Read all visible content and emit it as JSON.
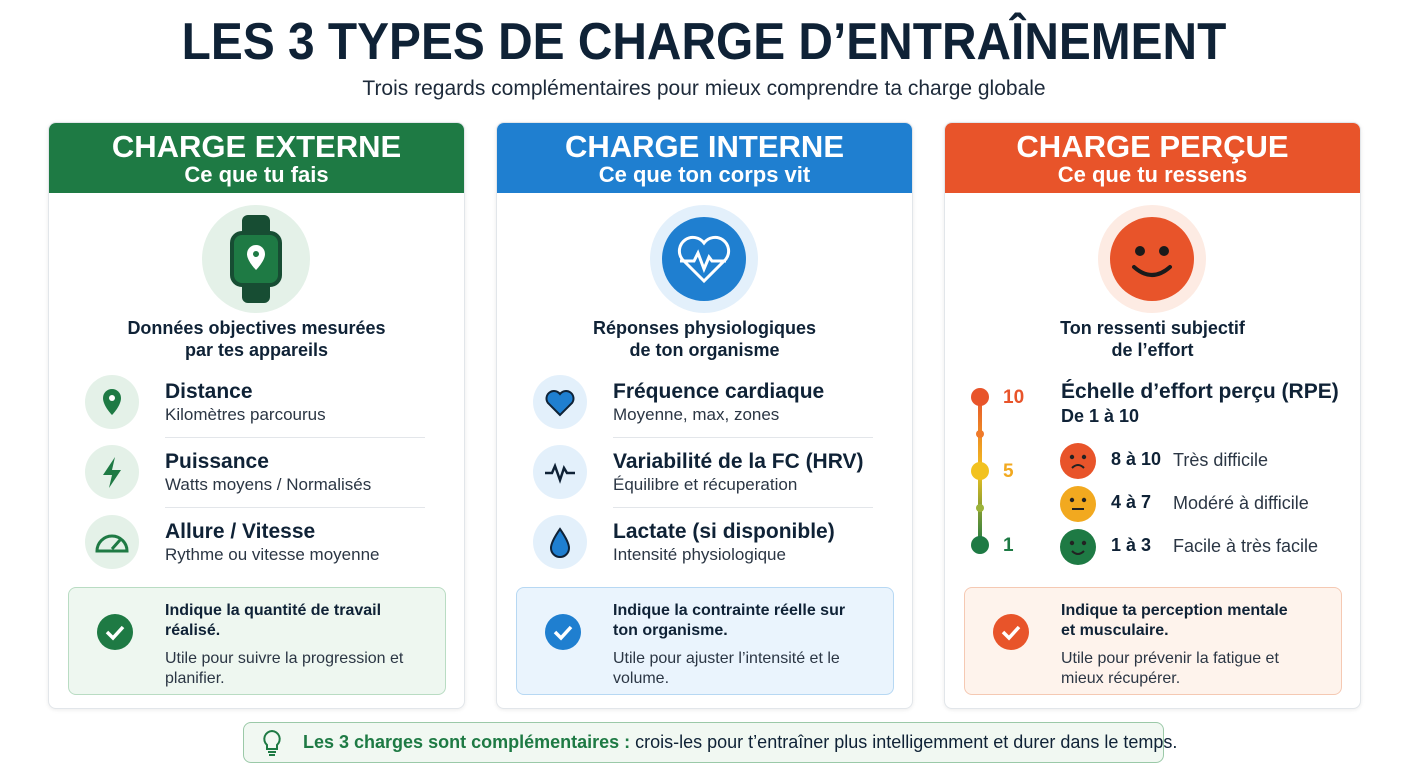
{
  "header": {
    "title": "LES 3 TYPES DE CHARGE D’ENTRAÎNEMENT",
    "subtitle": "Trois regards complémentaires pour mieux comprendre ta charge globale"
  },
  "cards": [
    {
      "title": "CHARGE EXTERNE",
      "subtitle": "Ce que tu fais",
      "intro": [
        "Données objectives mesurées",
        "par tes appareils"
      ],
      "items": [
        {
          "title": "Distance",
          "text": "Kilomètres parcourus"
        },
        {
          "title": "Puissance",
          "text": "Watts moyens / Normalisés"
        },
        {
          "title": "Allure / Vitesse",
          "text": "Rythme ou vitesse moyenne"
        }
      ],
      "note": {
        "strong": "Indique la quantité de travail réalisé.",
        "text": "Utile pour suivre la progression et planifier."
      }
    },
    {
      "title": "CHARGE INTERNE",
      "subtitle": "Ce que ton corps vit",
      "intro": [
        "Réponses physiologiques",
        "de ton organisme"
      ],
      "items": [
        {
          "title": "Fréquence cardiaque",
          "text": "Moyenne, max, zones"
        },
        {
          "title": "Variabilité de la FC (HRV)",
          "text": "Équilibre et récuperation"
        },
        {
          "title": "Lactate (si disponible)",
          "text": "Intensité physiologique"
        }
      ],
      "note": {
        "strong": "Indique la contrainte réelle sur ton organisme.",
        "text": "Utile pour ajuster l’intensité et le volume."
      }
    },
    {
      "title": "CHARGE PERÇUE",
      "subtitle": "Ce que tu ressens",
      "intro": [
        "Ton ressenti subjectif",
        "de l’effort"
      ],
      "scale": {
        "title": "Échelle d’effort perçu (RPE)",
        "subtitle": "De 1 à 10",
        "ticks": [
          10,
          5,
          1
        ],
        "levels": [
          {
            "range": "8 à 10",
            "label": "Très difficile"
          },
          {
            "range": "4 à 7",
            "label": "Modéré à difficile"
          },
          {
            "range": "1 à 3",
            "label": "Facile à très facile"
          }
        ]
      },
      "note": {
        "strong": "Indique ta perception mentale et musculaire.",
        "text": "Utile pour prévenir la fatigue et mieux récupérer."
      }
    }
  ],
  "footer": {
    "strong": "Les 3 charges sont complémentaires :",
    "text": "crois-les pour t’entraîner plus intelligemment et durer dans le temps."
  }
}
